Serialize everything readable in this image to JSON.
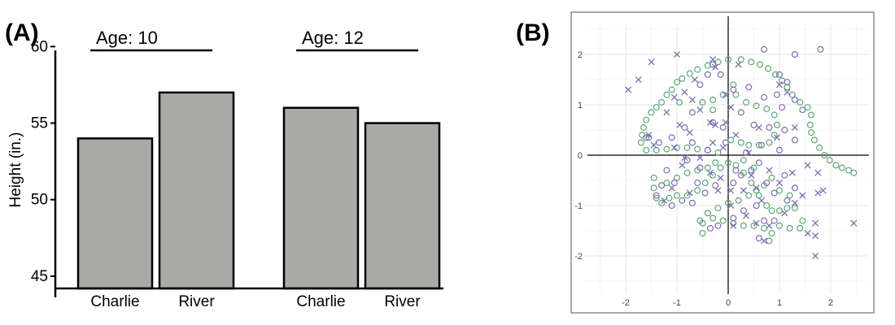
{
  "panels": {
    "a_label": "(A)",
    "b_label": "(B)"
  },
  "chart_data": [
    {
      "type": "bar",
      "ylabel": "Height (in.)",
      "xlabel": "",
      "ylim": [
        44.2,
        60.6
      ],
      "yticks": [
        45,
        50,
        55,
        60
      ],
      "groups": [
        {
          "label": "Age: 10",
          "categories": [
            "Charlie",
            "River"
          ],
          "values": [
            54,
            57
          ]
        },
        {
          "label": "Age: 12",
          "categories": [
            "Charlie",
            "River"
          ],
          "values": [
            56,
            55
          ]
        }
      ],
      "bar_color": "#a9a9a8",
      "grid": false
    },
    {
      "type": "scatter",
      "xlim": [
        -2.8,
        2.8
      ],
      "ylim": [
        -2.7,
        2.8
      ],
      "xticks": [
        -2,
        -1,
        0,
        1,
        2
      ],
      "yticks": [
        -2,
        -1,
        0,
        1,
        2
      ],
      "grid": true,
      "colors": {
        "circle_green": "#5aa873",
        "circle_purple": "#7b6eb0",
        "cross_purple": "#7b6eb0"
      },
      "series": [
        {
          "marker": "circle",
          "color": "#5aa873",
          "points": [
            [
              0.0,
              1.9
            ],
            [
              0.25,
              1.9
            ],
            [
              0.45,
              1.85
            ],
            [
              0.62,
              1.8
            ],
            [
              0.78,
              1.72
            ],
            [
              0.92,
              1.6
            ],
            [
              1.05,
              1.48
            ],
            [
              1.15,
              1.35
            ],
            [
              1.25,
              1.2
            ],
            [
              1.4,
              1.05
            ],
            [
              1.55,
              0.95
            ],
            [
              1.62,
              0.8
            ],
            [
              1.6,
              0.6
            ],
            [
              1.62,
              0.45
            ],
            [
              1.68,
              0.3
            ],
            [
              1.78,
              0.15
            ],
            [
              1.88,
              0.0
            ],
            [
              1.98,
              -0.1
            ],
            [
              2.1,
              -0.2
            ],
            [
              2.22,
              -0.25
            ],
            [
              2.35,
              -0.3
            ],
            [
              2.45,
              -0.35
            ],
            [
              -0.2,
              1.85
            ],
            [
              -0.4,
              1.78
            ],
            [
              -0.6,
              1.7
            ],
            [
              -0.75,
              1.62
            ],
            [
              -0.9,
              1.52
            ],
            [
              -1.0,
              1.45
            ],
            [
              -1.1,
              1.3
            ],
            [
              -1.2,
              1.2
            ],
            [
              -1.3,
              1.05
            ],
            [
              -1.4,
              0.95
            ],
            [
              -1.5,
              0.85
            ],
            [
              -1.6,
              0.7
            ],
            [
              -1.65,
              0.55
            ],
            [
              -1.68,
              0.4
            ],
            [
              -1.7,
              0.25
            ],
            [
              -1.6,
              0.1
            ],
            [
              -1.4,
              0.1
            ],
            [
              -1.2,
              0.12
            ],
            [
              -1.0,
              0.15
            ],
            [
              -0.8,
              0.15
            ],
            [
              -0.6,
              0.12
            ],
            [
              -0.4,
              0.1
            ],
            [
              -0.2,
              0.05
            ],
            [
              0.1,
              1.4
            ],
            [
              0.15,
              1.2
            ],
            [
              -0.1,
              1.2
            ],
            [
              -0.3,
              1.1
            ],
            [
              -0.5,
              1.05
            ],
            [
              0.35,
              1.05
            ],
            [
              0.55,
              0.98
            ],
            [
              0.75,
              0.92
            ],
            [
              0.9,
              0.8
            ],
            [
              0.95,
              0.6
            ],
            [
              0.9,
              0.4
            ],
            [
              0.8,
              0.25
            ],
            [
              0.6,
              0.2
            ],
            [
              0.4,
              0.2
            ],
            [
              0.25,
              0.25
            ],
            [
              0.05,
              0.3
            ],
            [
              -1.45,
              -0.45
            ],
            [
              -1.45,
              -0.65
            ],
            [
              -1.4,
              -0.85
            ],
            [
              -1.3,
              -0.95
            ],
            [
              -1.15,
              -0.85
            ],
            [
              -1.0,
              -0.8
            ],
            [
              -0.8,
              -0.8
            ],
            [
              -0.6,
              -0.7
            ],
            [
              -0.45,
              -0.55
            ],
            [
              -0.3,
              -0.4
            ],
            [
              -0.15,
              -0.25
            ],
            [
              0.0,
              -0.15
            ],
            [
              0.15,
              -0.2
            ],
            [
              0.3,
              -0.35
            ],
            [
              0.45,
              -0.55
            ],
            [
              0.6,
              -0.8
            ],
            [
              0.75,
              -1.0
            ],
            [
              0.85,
              -1.1
            ],
            [
              1.0,
              -1.1
            ],
            [
              1.15,
              -1.05
            ],
            [
              1.3,
              -1.05
            ],
            [
              1.45,
              -1.3
            ],
            [
              1.4,
              -1.45
            ],
            [
              1.2,
              -1.45
            ],
            [
              1.0,
              -1.4
            ],
            [
              0.85,
              -1.55
            ],
            [
              0.8,
              -1.7
            ],
            [
              0.7,
              -1.45
            ],
            [
              0.5,
              -1.4
            ],
            [
              0.3,
              -1.4
            ],
            [
              0.1,
              -1.35
            ],
            [
              -0.1,
              -1.3
            ],
            [
              -0.3,
              -1.25
            ],
            [
              -0.5,
              -1.35
            ],
            [
              -0.5,
              -1.55
            ],
            [
              -0.55,
              -1.3
            ],
            [
              -0.4,
              -1.15
            ],
            [
              -0.2,
              -1.05
            ],
            [
              0.0,
              -0.95
            ],
            [
              0.2,
              -0.9
            ],
            [
              0.4,
              -0.8
            ],
            [
              0.55,
              -0.7
            ],
            [
              0.7,
              -0.6
            ],
            [
              0.85,
              -0.45
            ],
            [
              -1.2,
              -0.55
            ],
            [
              -1.0,
              -0.45
            ],
            [
              -0.8,
              -0.35
            ],
            [
              -0.6,
              -0.3
            ],
            [
              -0.4,
              -0.25
            ],
            [
              -0.25,
              -0.15
            ],
            [
              0.3,
              -0.1
            ],
            [
              0.5,
              -0.25
            ],
            [
              -1.55,
              0.35
            ],
            [
              -0.95,
              1.05
            ],
            [
              -0.3,
              0.9
            ],
            [
              1.0,
              -0.7
            ],
            [
              1.2,
              -0.8
            ]
          ]
        },
        {
          "marker": "circle",
          "color": "#7b6eb0",
          "points": [
            [
              0.7,
              2.1
            ],
            [
              1.8,
              2.1
            ],
            [
              1.3,
              2.0
            ],
            [
              -0.3,
              1.8
            ],
            [
              -0.4,
              1.6
            ],
            [
              0.1,
              1.3
            ],
            [
              -0.55,
              1.4
            ],
            [
              1.0,
              1.6
            ],
            [
              1.15,
              1.45
            ],
            [
              0.95,
              1.2
            ],
            [
              1.3,
              1.1
            ],
            [
              1.45,
              0.9
            ],
            [
              1.05,
              0.95
            ],
            [
              0.7,
              1.15
            ],
            [
              0.25,
              0.85
            ],
            [
              -0.7,
              0.85
            ],
            [
              -0.3,
              0.65
            ],
            [
              -0.1,
              0.55
            ],
            [
              0.5,
              0.6
            ],
            [
              0.8,
              0.55
            ],
            [
              1.1,
              0.5
            ],
            [
              1.3,
              0.3
            ],
            [
              1.0,
              0.1
            ],
            [
              0.65,
              0.2
            ],
            [
              0.35,
              0.05
            ],
            [
              -0.85,
              0.55
            ],
            [
              -1.1,
              0.35
            ],
            [
              -1.35,
              0.25
            ],
            [
              -1.6,
              0.35
            ],
            [
              -0.7,
              0.25
            ],
            [
              -0.4,
              0.1
            ],
            [
              -1.2,
              -0.3
            ],
            [
              -1.05,
              -0.55
            ],
            [
              -0.9,
              -0.9
            ],
            [
              -0.7,
              -0.95
            ],
            [
              -1.4,
              -0.8
            ],
            [
              -1.1,
              -1.0
            ],
            [
              -0.6,
              -0.55
            ],
            [
              -0.45,
              -0.75
            ],
            [
              -0.25,
              -0.6
            ],
            [
              0.1,
              -0.55
            ],
            [
              0.25,
              -0.4
            ],
            [
              0.45,
              -0.3
            ],
            [
              0.6,
              -0.15
            ],
            [
              0.75,
              -0.55
            ],
            [
              0.9,
              -0.75
            ],
            [
              1.1,
              -0.4
            ],
            [
              1.3,
              -0.65
            ],
            [
              1.15,
              -0.9
            ],
            [
              0.55,
              -1.0
            ],
            [
              0.3,
              -1.1
            ],
            [
              0.1,
              -1.25
            ],
            [
              -0.2,
              -1.4
            ],
            [
              -0.35,
              -1.45
            ],
            [
              0.7,
              -1.3
            ],
            [
              0.9,
              -1.3
            ],
            [
              0.6,
              -1.65
            ],
            [
              0.15,
              -0.3
            ],
            [
              -0.05,
              0.25
            ],
            [
              0.4,
              1.35
            ],
            [
              -0.15,
              1.6
            ],
            [
              -0.55,
              -0.25
            ],
            [
              -0.8,
              -0.1
            ],
            [
              -1.3,
              -0.6
            ]
          ]
        },
        {
          "marker": "cross",
          "color": "#7b6eb0",
          "points": [
            [
              -1.0,
              2.0
            ],
            [
              -1.5,
              1.85
            ],
            [
              -1.75,
              1.5
            ],
            [
              -1.95,
              1.3
            ],
            [
              -0.3,
              1.9
            ],
            [
              -0.25,
              1.75
            ],
            [
              -0.65,
              1.5
            ],
            [
              -0.85,
              1.25
            ],
            [
              -1.05,
              1.15
            ],
            [
              -0.7,
              1.1
            ],
            [
              -0.55,
              0.9
            ],
            [
              -0.35,
              0.65
            ],
            [
              -0.95,
              0.6
            ],
            [
              -0.75,
              0.45
            ],
            [
              -1.55,
              0.4
            ],
            [
              -1.45,
              0.2
            ],
            [
              -1.05,
              0.15
            ],
            [
              -0.85,
              -0.05
            ],
            [
              -0.3,
              0.25
            ],
            [
              -0.1,
              0.15
            ],
            [
              -0.15,
              -0.45
            ],
            [
              -0.35,
              -0.35
            ],
            [
              -0.55,
              -0.05
            ],
            [
              -0.9,
              -0.2
            ],
            [
              -1.1,
              -0.65
            ],
            [
              -1.25,
              -0.9
            ],
            [
              -0.75,
              -0.75
            ],
            [
              -0.2,
              -0.7
            ],
            [
              0.05,
              -0.7
            ],
            [
              0.3,
              -0.7
            ],
            [
              0.55,
              -0.65
            ],
            [
              0.65,
              -0.9
            ],
            [
              0.55,
              -1.35
            ],
            [
              0.8,
              -1.4
            ],
            [
              0.7,
              -1.7
            ],
            [
              0.35,
              -1.2
            ],
            [
              0.1,
              -1.4
            ],
            [
              0.05,
              -1.0
            ],
            [
              0.45,
              -0.4
            ],
            [
              0.8,
              -0.3
            ],
            [
              1.0,
              -0.55
            ],
            [
              1.25,
              -0.35
            ],
            [
              1.45,
              -0.8
            ],
            [
              1.3,
              -0.95
            ],
            [
              1.1,
              -1.15
            ],
            [
              1.7,
              -1.35
            ],
            [
              1.7,
              -1.6
            ],
            [
              1.7,
              -2.0
            ],
            [
              1.55,
              -1.55
            ],
            [
              1.85,
              -0.7
            ],
            [
              1.75,
              -0.35
            ],
            [
              1.55,
              -0.2
            ],
            [
              2.45,
              -1.35
            ],
            [
              1.3,
              0.55
            ],
            [
              0.95,
              0.35
            ],
            [
              0.6,
              0.55
            ],
            [
              0.4,
              0.05
            ],
            [
              0.15,
              0.4
            ],
            [
              -0.05,
              0.65
            ],
            [
              -0.05,
              1.2
            ],
            [
              0.2,
              1.8
            ],
            [
              0.05,
              0.95
            ],
            [
              1.0,
              1.4
            ],
            [
              1.15,
              1.25
            ],
            [
              1.75,
              -0.75
            ],
            [
              -1.2,
              0.85
            ],
            [
              -0.25,
              0.6
            ]
          ]
        }
      ]
    }
  ]
}
